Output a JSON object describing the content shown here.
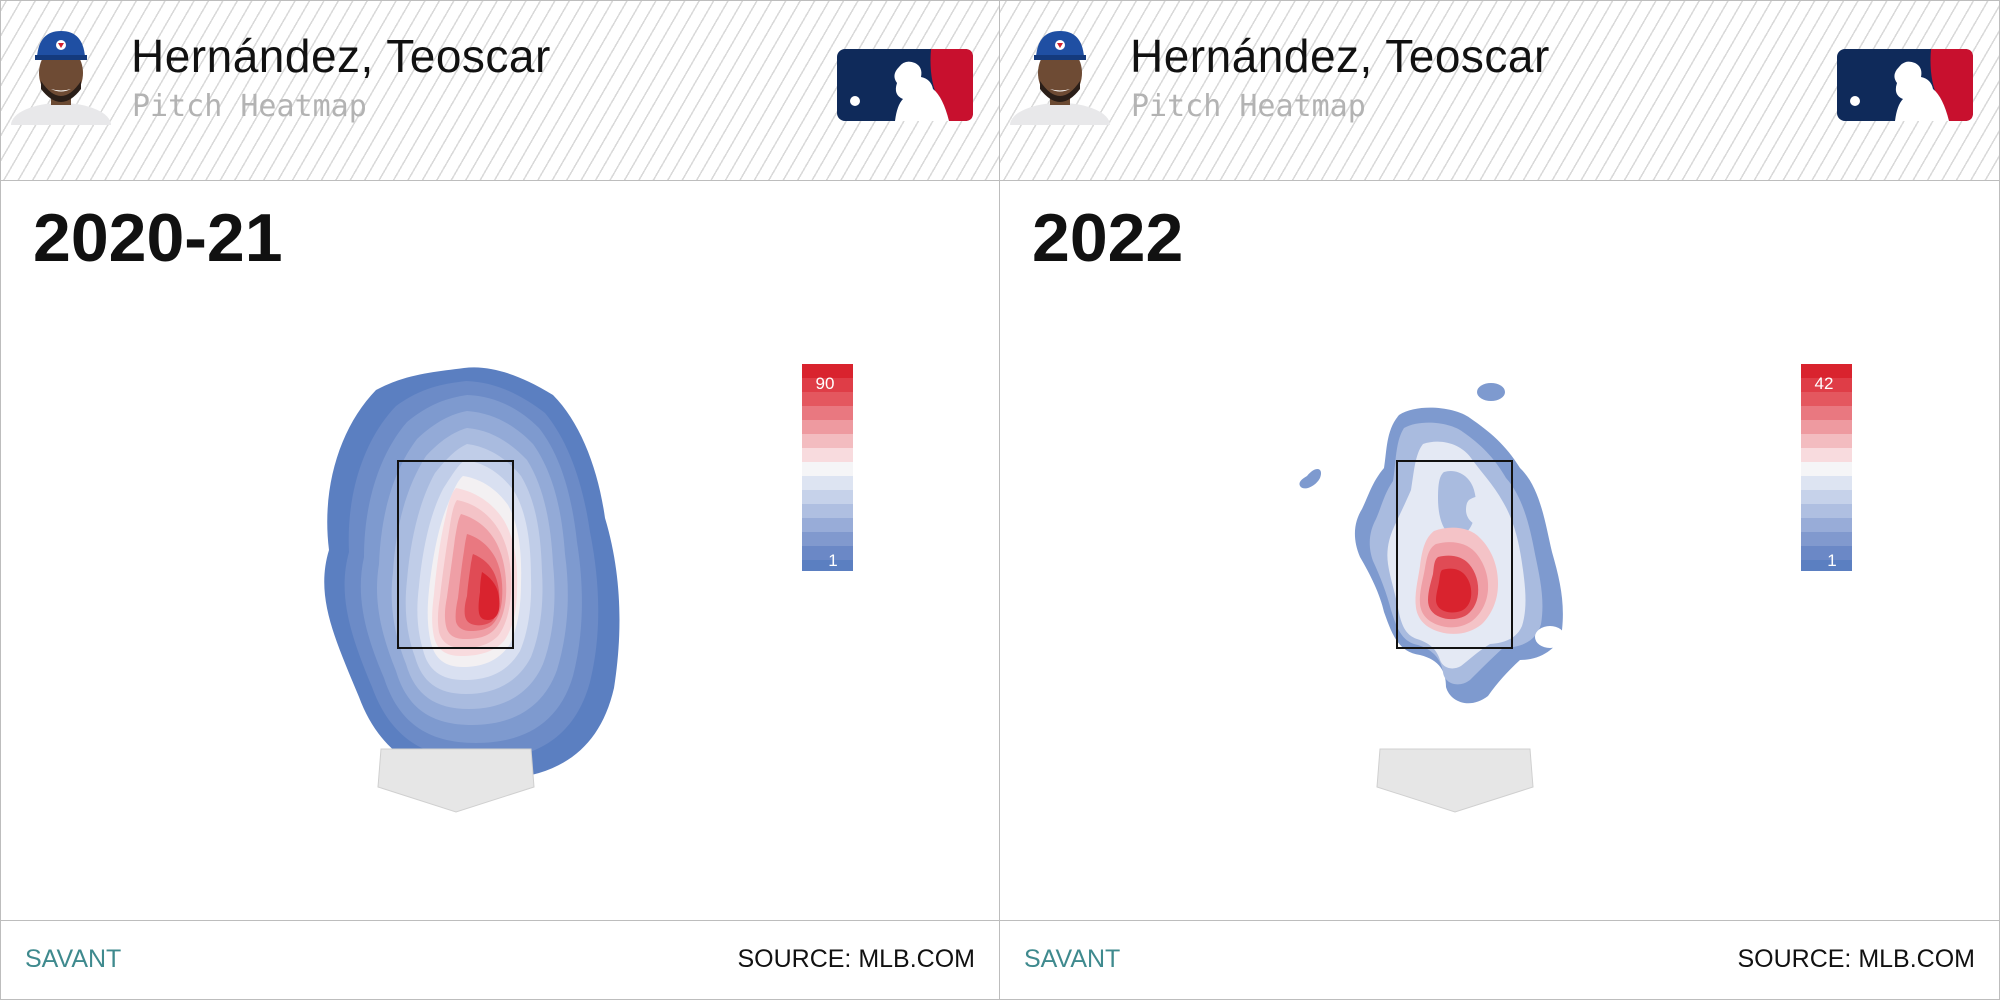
{
  "panels": [
    {
      "player": "Hernández, Teoscar",
      "subtitle": "Pitch Heatmap",
      "period": "2020-21",
      "footer_left": "SAVANT",
      "footer_right": "SOURCE: MLB.COM",
      "icons": {
        "avatar": "player-headshot-icon",
        "logo": "mlb-logo-icon"
      }
    },
    {
      "player": "Hernández, Teoscar",
      "subtitle": "Pitch Heatmap",
      "period": "2022",
      "footer_left": "SAVANT",
      "footer_right": "SOURCE: MLB.COM",
      "icons": {
        "avatar": "player-headshot-icon",
        "logo": "mlb-logo-icon"
      }
    }
  ],
  "colors": {
    "low": "#5b7fc1",
    "mid": "#f5f5f7",
    "high": "#d9232e",
    "zone": "#111111",
    "plate": "#e6e6e6"
  },
  "chart_data": [
    {
      "type": "heatmap",
      "title": "2020-21",
      "legend_max": "90",
      "legend_min": "1",
      "hotspot": "middle-away, lower-center of strike zone",
      "levels": 14
    },
    {
      "type": "heatmap",
      "title": "2022",
      "legend_max": "42",
      "legend_min": "1",
      "hotspot": "lower-center of strike zone",
      "levels": 14
    }
  ]
}
